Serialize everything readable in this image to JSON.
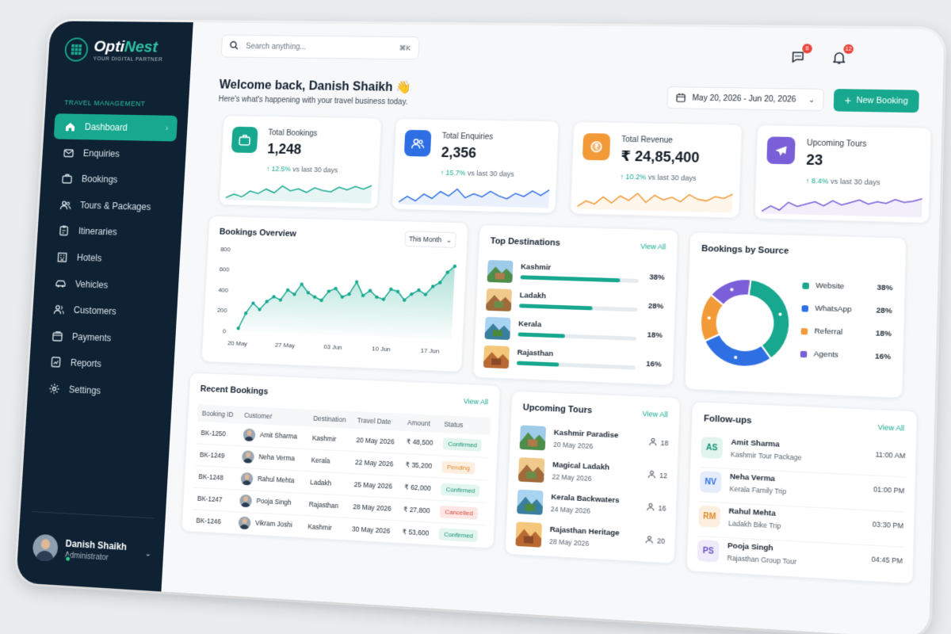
{
  "brand": {
    "name_part1": "Opti",
    "name_part2": "Nest",
    "tagline": "YOUR DIGITAL PARTNER"
  },
  "sidebar": {
    "section": "TRAVEL MANAGEMENT",
    "items": [
      {
        "label": "Dashboard",
        "icon": "home-icon",
        "active": true
      },
      {
        "label": "Enquiries",
        "icon": "mail-icon"
      },
      {
        "label": "Bookings",
        "icon": "briefcase-icon"
      },
      {
        "label": "Tours & Packages",
        "icon": "users-icon"
      },
      {
        "label": "Itineraries",
        "icon": "clipboard-icon"
      },
      {
        "label": "Hotels",
        "icon": "building-icon"
      },
      {
        "label": "Vehicles",
        "icon": "car-icon"
      },
      {
        "label": "Customers",
        "icon": "customers-icon"
      },
      {
        "label": "Payments",
        "icon": "wallet-icon"
      },
      {
        "label": "Reports",
        "icon": "report-icon"
      },
      {
        "label": "Settings",
        "icon": "gear-icon"
      }
    ],
    "user": {
      "name": "Danish Shaikh",
      "role": "Administrator"
    }
  },
  "header": {
    "search_placeholder": "Search anything...",
    "search_shortcut": "⌘K",
    "messages_badge": "8",
    "notifications_badge": "12",
    "welcome": "Welcome back, Danish Shaikh 👋",
    "welcome_sub": "Here's what's happening with your travel business today.",
    "date_range": "May 20, 2026 - Jun 20, 2026",
    "new_booking": "New Booking"
  },
  "stats": [
    {
      "label": "Total Bookings",
      "value": "1,248",
      "change": "12.5%",
      "period": "vs last 30 days",
      "icon": "briefcase-icon",
      "color": "#17a88f",
      "spark": [
        5,
        8,
        6,
        11,
        9,
        13,
        10,
        16,
        12,
        14,
        11,
        15,
        13,
        12,
        16,
        14,
        17,
        15,
        18
      ]
    },
    {
      "label": "Total Enquiries",
      "value": "2,356",
      "change": "15.7%",
      "period": "vs last 30 days",
      "icon": "users-icon",
      "color": "#2f6fe4",
      "spark": [
        6,
        10,
        7,
        12,
        9,
        14,
        11,
        16,
        10,
        13,
        11,
        15,
        12,
        10,
        14,
        12,
        16,
        13,
        17
      ]
    },
    {
      "label": "Total Revenue",
      "value": "₹ 24,85,400",
      "change": "10.2%",
      "period": "vs last 30 days",
      "icon": "rupee-coin-icon",
      "color": "#f29a38",
      "spark": [
        5,
        9,
        7,
        12,
        8,
        13,
        10,
        15,
        9,
        14,
        11,
        13,
        10,
        15,
        12,
        11,
        14,
        13,
        16
      ]
    },
    {
      "label": "Upcoming Tours",
      "value": "23",
      "change": "8.4%",
      "period": "vs last 30 days",
      "icon": "plane-icon",
      "color": "#7b5fd8",
      "spark": [
        4,
        8,
        5,
        11,
        8,
        10,
        12,
        9,
        13,
        10,
        12,
        14,
        11,
        13,
        12,
        15,
        13,
        14,
        16
      ]
    }
  ],
  "bookings_overview": {
    "title": "Bookings Overview",
    "period": "This Month",
    "chart_data": {
      "type": "area",
      "x": [
        "20 May",
        "21 May",
        "22 May",
        "23 May",
        "24 May",
        "25 May",
        "26 May",
        "27 May",
        "28 May",
        "29 May",
        "30 May",
        "31 May",
        "01 Jun",
        "02 Jun",
        "03 Jun",
        "04 Jun",
        "05 Jun",
        "06 Jun",
        "07 Jun",
        "08 Jun",
        "09 Jun",
        "10 Jun",
        "11 Jun",
        "12 Jun",
        "13 Jun",
        "14 Jun",
        "15 Jun",
        "16 Jun",
        "17 Jun",
        "18 Jun",
        "19 Jun",
        "20 Jun"
      ],
      "tick_labels": [
        "20 May",
        "27 May",
        "03 Jun",
        "10 Jun",
        "17 Jun"
      ],
      "y_ticks": [
        0,
        200,
        400,
        600,
        800
      ],
      "ylim": [
        0,
        800
      ],
      "values": [
        30,
        180,
        280,
        220,
        300,
        350,
        320,
        420,
        380,
        480,
        400,
        360,
        330,
        420,
        450,
        370,
        400,
        520,
        390,
        440,
        380,
        360,
        460,
        440,
        360,
        420,
        460,
        420,
        500,
        540,
        640,
        700
      ]
    }
  },
  "top_destinations": {
    "title": "Top Destinations",
    "view_all": "View All",
    "items": [
      {
        "name": "Kashmir",
        "pct": "38%",
        "value": 38
      },
      {
        "name": "Ladakh",
        "pct": "28%",
        "value": 28
      },
      {
        "name": "Kerala",
        "pct": "18%",
        "value": 18
      },
      {
        "name": "Rajasthan",
        "pct": "16%",
        "value": 16
      }
    ]
  },
  "by_source": {
    "title": "Bookings by Source",
    "chart_data": {
      "type": "pie",
      "labels": [
        "Website",
        "WhatsApp",
        "Referral",
        "Agents"
      ],
      "values": [
        38,
        28,
        18,
        16
      ],
      "display": [
        "38%",
        "28%",
        "18%",
        "16%"
      ],
      "colors": [
        "#17a88f",
        "#2f6fe4",
        "#f29a38",
        "#7b5fd8"
      ]
    }
  },
  "recent_bookings": {
    "title": "Recent Bookings",
    "view_all": "View All",
    "columns": [
      "Booking ID",
      "Customer",
      "Destination",
      "Travel Date",
      "Amount",
      "Status"
    ],
    "rows": [
      {
        "id": "BK-1250",
        "customer": "Amit Sharma",
        "destination": "Kashmir",
        "date": "20 May 2026",
        "amount": "₹ 48,500",
        "status": "Confirmed",
        "kind": "confirmed"
      },
      {
        "id": "BK-1249",
        "customer": "Neha Verma",
        "destination": "Kerala",
        "date": "22 May 2026",
        "amount": "₹ 35,200",
        "status": "Pending",
        "kind": "pending"
      },
      {
        "id": "BK-1248",
        "customer": "Rahul Mehta",
        "destination": "Ladakh",
        "date": "25 May 2026",
        "amount": "₹ 62,000",
        "status": "Confirmed",
        "kind": "confirmed"
      },
      {
        "id": "BK-1247",
        "customer": "Pooja Singh",
        "destination": "Rajasthan",
        "date": "28 May 2026",
        "amount": "₹ 27,800",
        "status": "Cancelled",
        "kind": "cancelled"
      },
      {
        "id": "BK-1246",
        "customer": "Vikram Joshi",
        "destination": "Kashmir",
        "date": "30 May 2026",
        "amount": "₹ 53,600",
        "status": "Confirmed",
        "kind": "confirmed"
      }
    ]
  },
  "upcoming_tours": {
    "title": "Upcoming Tours",
    "view_all": "View All",
    "items": [
      {
        "name": "Kashmir Paradise",
        "date": "20 May 2026",
        "count": "18"
      },
      {
        "name": "Magical Ladakh",
        "date": "22 May 2026",
        "count": "12"
      },
      {
        "name": "Kerala Backwaters",
        "date": "24 May 2026",
        "count": "16"
      },
      {
        "name": "Rajasthan Heritage",
        "date": "28 May 2026",
        "count": "20"
      }
    ]
  },
  "followups": {
    "title": "Follow-ups",
    "view_all": "View All",
    "items": [
      {
        "initials": "AS",
        "name": "Amit Sharma",
        "sub": "Kashmir Tour Package",
        "time": "11:00 AM",
        "bg": "#e2f4ee",
        "fg": "#159374"
      },
      {
        "initials": "NV",
        "name": "Neha Verma",
        "sub": "Kerala Family Trip",
        "time": "01:00 PM",
        "bg": "#e5edfc",
        "fg": "#2f6fe4"
      },
      {
        "initials": "RM",
        "name": "Rahul Mehta",
        "sub": "Ladakh Bike Trip",
        "time": "03:30 PM",
        "bg": "#fdefe0",
        "fg": "#e08a2c"
      },
      {
        "initials": "PS",
        "name": "Pooja Singh",
        "sub": "Rajasthan Group Tour",
        "time": "04:45 PM",
        "bg": "#eeeaf9",
        "fg": "#6b52c8"
      }
    ]
  }
}
